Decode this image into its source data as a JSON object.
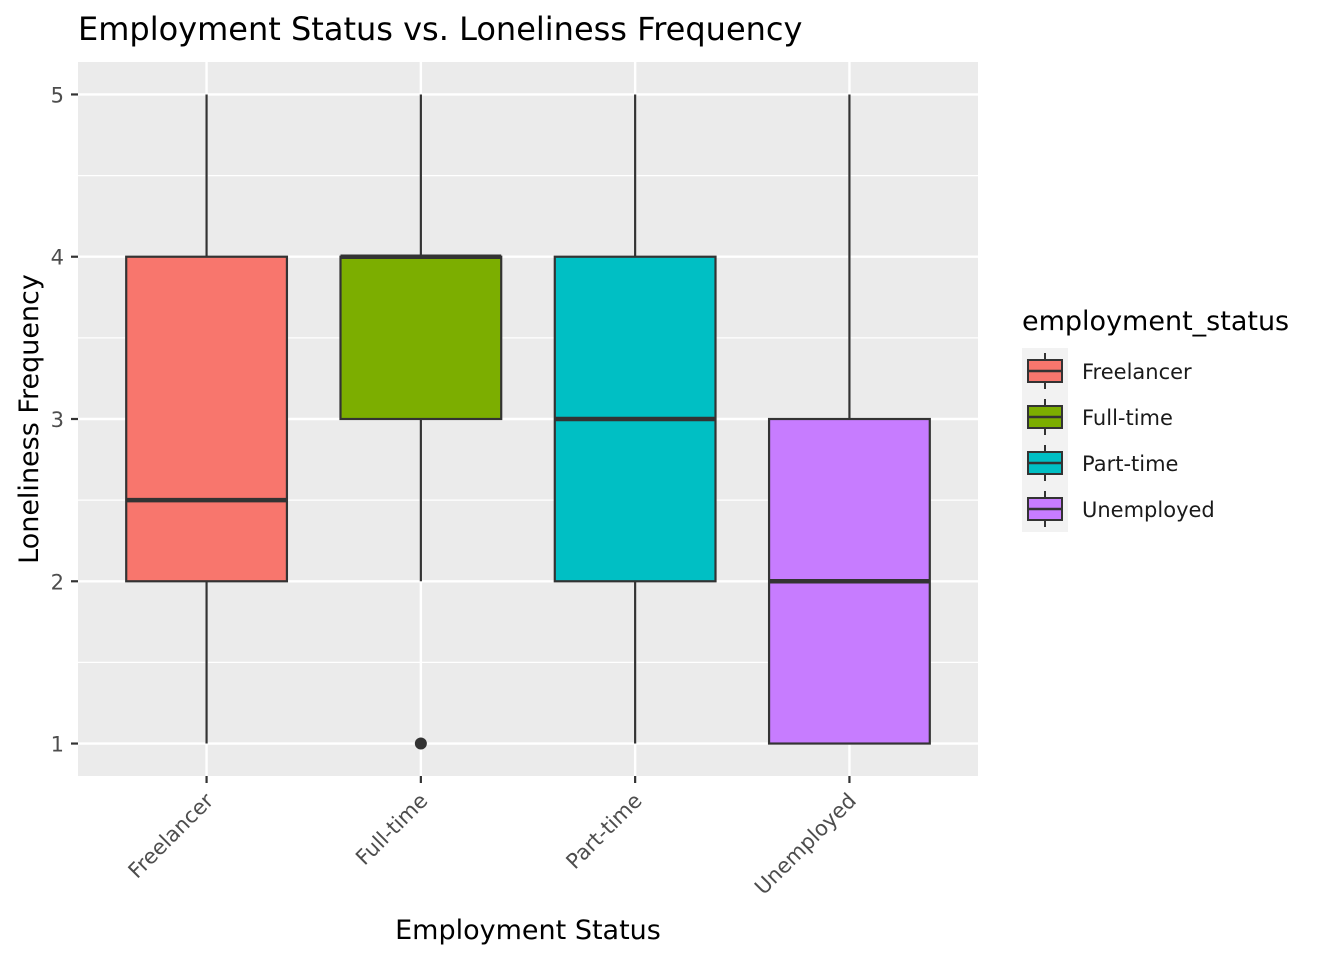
{
  "chart_data": {
    "type": "boxplot",
    "title": "Employment Status vs. Loneliness Frequency",
    "xlabel": "Employment Status",
    "ylabel": "Loneliness Frequency",
    "categories": [
      "Freelancer",
      "Full-time",
      "Part-time",
      "Unemployed"
    ],
    "yticks": [
      1,
      2,
      3,
      4,
      5
    ],
    "ylim": [
      0.8,
      5.2
    ],
    "grid": true,
    "legend": {
      "title": "employment_status",
      "position": "right",
      "entries": [
        "Freelancer",
        "Full-time",
        "Part-time",
        "Unemployed"
      ]
    },
    "boxes": [
      {
        "category": "Freelancer",
        "min": 1,
        "q1": 2,
        "median": 2.5,
        "q3": 4,
        "max": 5,
        "outliers": [],
        "color": "#F8766D"
      },
      {
        "category": "Full-time",
        "min": 2,
        "q1": 3,
        "median": 4,
        "q3": 4,
        "max": 5,
        "outliers": [
          1
        ],
        "color": "#7CAE00"
      },
      {
        "category": "Part-time",
        "min": 1,
        "q1": 2,
        "median": 3,
        "q3": 4,
        "max": 5,
        "outliers": [],
        "color": "#00BFC4"
      },
      {
        "category": "Unemployed",
        "min": 1,
        "q1": 1,
        "median": 2,
        "q3": 3,
        "max": 5,
        "outliers": [],
        "color": "#C77CFF"
      }
    ],
    "colors": {
      "panel": "#EBEBEB",
      "grid": "#FFFFFF",
      "outline": "#333333"
    }
  }
}
